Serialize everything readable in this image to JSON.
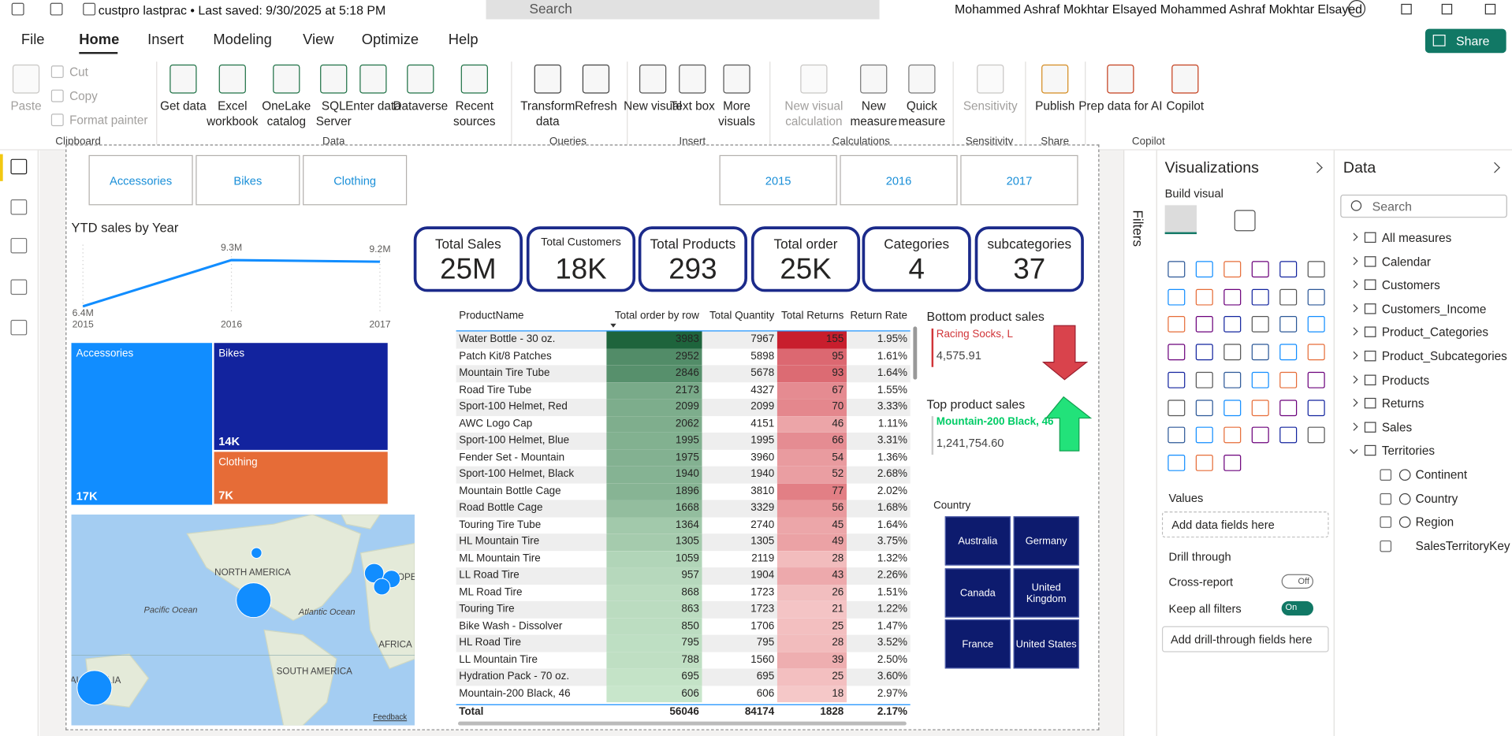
{
  "title_bar": {
    "file": "custpro lastprac • Last saved: 9/30/2025 at 5:18 PM",
    "search": "Search",
    "user": "Mohammed Ashraf Mokhtar Elsayed Mohammed Ashraf Mokhtar Elsayed"
  },
  "menu": [
    "File",
    "Home",
    "Insert",
    "Modeling",
    "View",
    "Optimize",
    "Help"
  ],
  "share": "Share",
  "ribbon": [
    {
      "label": "Clipboard",
      "buttons": [
        {
          "text": "Paste",
          "enabled": false
        },
        {
          "text": "Cut",
          "enabled": false
        },
        {
          "text": "Copy",
          "enabled": false
        },
        {
          "text": "Format painter",
          "enabled": false
        }
      ]
    },
    {
      "label": "Data",
      "buttons": [
        {
          "text": "Get data",
          "enabled": true
        },
        {
          "text": "Excel workbook",
          "enabled": true
        },
        {
          "text": "OneLake catalog",
          "enabled": true
        },
        {
          "text": "SQL Server",
          "enabled": true
        },
        {
          "text": "Enter data",
          "enabled": true
        },
        {
          "text": "Dataverse",
          "enabled": true
        },
        {
          "text": "Recent sources",
          "enabled": true
        }
      ]
    },
    {
      "label": "Queries",
      "buttons": [
        {
          "text": "Transform data",
          "enabled": true
        },
        {
          "text": "Refresh",
          "enabled": true
        }
      ]
    },
    {
      "label": "Insert",
      "buttons": [
        {
          "text": "New visual",
          "enabled": true
        },
        {
          "text": "Text box",
          "enabled": true
        },
        {
          "text": "More visuals",
          "enabled": true
        }
      ]
    },
    {
      "label": "Calculations",
      "buttons": [
        {
          "text": "New visual calculation",
          "enabled": false
        },
        {
          "text": "New measure",
          "enabled": true
        },
        {
          "text": "Quick measure",
          "enabled": true
        }
      ]
    },
    {
      "label": "Sensitivity",
      "buttons": [
        {
          "text": "Sensitivity",
          "enabled": false
        }
      ]
    },
    {
      "label": "Share",
      "buttons": [
        {
          "text": "Publish",
          "enabled": true
        }
      ]
    },
    {
      "label": "Copilot",
      "buttons": [
        {
          "text": "Prep data for AI",
          "enabled": true
        },
        {
          "text": "Copilot",
          "enabled": true
        }
      ]
    }
  ],
  "report": {
    "category_slicer": [
      "Accessories",
      "Bikes",
      "Clothing"
    ],
    "year_slicer": [
      "2015",
      "2016",
      "2017"
    ],
    "kpis": [
      {
        "title": "Total Sales",
        "value": "25M"
      },
      {
        "title": "Total Customers",
        "value": "18K"
      },
      {
        "title": "Total Products",
        "value": "293"
      },
      {
        "title": "Total order",
        "value": "25K"
      },
      {
        "title": "Categories",
        "value": "4"
      },
      {
        "title": "subcategories",
        "value": "37"
      }
    ],
    "table": {
      "columns": [
        "ProductName",
        "Total order by row",
        "Total Quantity",
        "Total Returns",
        "Return Rate"
      ],
      "rows": [
        [
          "Water Bottle - 30 oz.",
          3983,
          7967,
          155,
          "1.95%"
        ],
        [
          "Patch Kit/8 Patches",
          2952,
          5898,
          95,
          "1.61%"
        ],
        [
          "Mountain Tire Tube",
          2846,
          5678,
          93,
          "1.64%"
        ],
        [
          "Road Tire Tube",
          2173,
          4327,
          67,
          "1.55%"
        ],
        [
          "Sport-100 Helmet, Red",
          2099,
          2099,
          70,
          "3.33%"
        ],
        [
          "AWC Logo Cap",
          2062,
          4151,
          46,
          "1.11%"
        ],
        [
          "Sport-100 Helmet, Blue",
          1995,
          1995,
          66,
          "3.31%"
        ],
        [
          "Fender Set - Mountain",
          1975,
          3960,
          54,
          "1.36%"
        ],
        [
          "Sport-100 Helmet, Black",
          1940,
          1940,
          52,
          "2.68%"
        ],
        [
          "Mountain Bottle Cage",
          1896,
          3810,
          77,
          "2.02%"
        ],
        [
          "Road Bottle Cage",
          1668,
          3329,
          56,
          "1.68%"
        ],
        [
          "Touring Tire Tube",
          1364,
          2740,
          45,
          "1.64%"
        ],
        [
          "HL Mountain Tire",
          1305,
          1305,
          49,
          "3.75%"
        ],
        [
          "ML Mountain Tire",
          1059,
          2119,
          28,
          "1.32%"
        ],
        [
          "LL Road Tire",
          957,
          1904,
          43,
          "2.26%"
        ],
        [
          "ML Road Tire",
          868,
          1723,
          26,
          "1.51%"
        ],
        [
          "Touring Tire",
          863,
          1723,
          21,
          "1.22%"
        ],
        [
          "Bike Wash - Dissolver",
          850,
          1706,
          25,
          "1.47%"
        ],
        [
          "HL Road Tire",
          795,
          795,
          28,
          "3.52%"
        ],
        [
          "LL Mountain Tire",
          788,
          1560,
          39,
          "2.50%"
        ],
        [
          "Hydration Pack - 70 oz.",
          695,
          695,
          25,
          "3.60%"
        ],
        [
          "Mountain-200 Black, 46",
          606,
          606,
          18,
          "2.97%"
        ]
      ],
      "total": [
        "Total",
        56046,
        84174,
        1828,
        "2.17%"
      ]
    },
    "bottom_product": {
      "title": "Bottom product sales",
      "name": "Racing Socks, L",
      "value": "4,575.91"
    },
    "top_product": {
      "title": "Top product sales",
      "name": "Mountain-200 Black, 46",
      "value": "1,241,754.60"
    },
    "country_slicer": {
      "title": "Country",
      "items": [
        "Australia",
        "Germany",
        "Canada",
        "United Kingdom",
        "France",
        "United States"
      ]
    },
    "map": {
      "labels": [
        "NORTH AMERICA",
        "Pacific Ocean",
        "Atlantic Ocean",
        "SOUTH AMERICA",
        "AFRICA",
        "EUROPE",
        "AUSTRALIA"
      ],
      "feedback": "Feedback"
    }
  },
  "chart_data": [
    {
      "type": "line",
      "title": "YTD sales by Year",
      "x": [
        2015,
        2016,
        2017
      ],
      "values": [
        6400000,
        9300000,
        9200000
      ],
      "value_labels": [
        "6.4M",
        "9.3M",
        "9.2M"
      ],
      "color": "#118dff"
    },
    {
      "type": "treemap",
      "categories": [
        "Accessories",
        "Bikes",
        "Clothing"
      ],
      "values": [
        17000,
        14000,
        7000
      ],
      "value_labels": [
        "17K",
        "14K",
        "7K"
      ],
      "colors": [
        "#118dff",
        "#12239e",
        "#e66c37"
      ]
    }
  ],
  "filters": "Filters",
  "visualizations": {
    "title": "Visualizations",
    "build": "Build visual",
    "values_label": "Values",
    "values_placeholder": "Add data fields here",
    "drill_title": "Drill through",
    "cross_report": "Cross-report",
    "cross_state": "Off",
    "keep_filters": "Keep all filters",
    "keep_state": "On",
    "drill_placeholder": "Add drill-through fields here"
  },
  "data_pane": {
    "title": "Data",
    "search": "Search",
    "tables": [
      "All measures",
      "Calendar",
      "Customers",
      "Customers_Income",
      "Product_Categories",
      "Product_Subcategories",
      "Products",
      "Returns",
      "Sales",
      "Territories"
    ],
    "territory_fields": [
      "Continent",
      "Country",
      "Region",
      "SalesTerritoryKey"
    ]
  }
}
